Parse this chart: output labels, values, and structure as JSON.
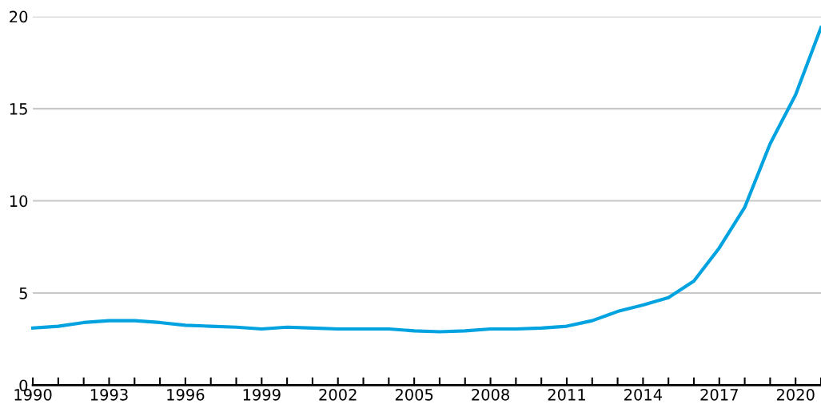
{
  "chart_data": {
    "type": "line",
    "x": [
      1990,
      1991,
      1992,
      1993,
      1994,
      1995,
      1996,
      1997,
      1998,
      1999,
      2000,
      2001,
      2002,
      2003,
      2004,
      2005,
      2006,
      2007,
      2008,
      2009,
      2010,
      2011,
      2012,
      2013,
      2014,
      2015,
      2016,
      2017,
      2018,
      2019,
      2020,
      2021
    ],
    "series": [
      {
        "color": "#00a3e0",
        "values": [
          3.1,
          3.2,
          3.4,
          3.5,
          3.5,
          3.4,
          3.25,
          3.2,
          3.15,
          3.05,
          3.15,
          3.1,
          3.05,
          3.05,
          3.05,
          2.95,
          2.9,
          2.95,
          3.05,
          3.05,
          3.1,
          3.2,
          3.5,
          4.0,
          4.35,
          4.75,
          5.65,
          7.45,
          9.65,
          13.1,
          15.75,
          19.4
        ]
      }
    ],
    "xlim": [
      1990,
      2021
    ],
    "xticks": [
      1990,
      {
        "value": 1991,
        "label": null
      },
      {
        "value": 1992,
        "label": null
      },
      1993,
      {
        "value": 1994,
        "label": null
      },
      {
        "value": 1995,
        "label": null
      },
      1996,
      {
        "value": 1997,
        "label": null
      },
      {
        "value": 1998,
        "label": null
      },
      1999,
      {
        "value": 2000,
        "label": null
      },
      {
        "value": 2001,
        "label": null
      },
      2002,
      {
        "value": 2003,
        "label": null
      },
      {
        "value": 2004,
        "label": null
      },
      2005,
      {
        "value": 2006,
        "label": null
      },
      {
        "value": 2007,
        "label": null
      },
      2008,
      {
        "value": 2009,
        "label": null
      },
      {
        "value": 2010,
        "label": null
      },
      2011,
      {
        "value": 2012,
        "label": null
      },
      {
        "value": 2013,
        "label": null
      },
      2014,
      {
        "value": 2015,
        "label": null
      },
      {
        "value": 2016,
        "label": null
      },
      2017,
      {
        "value": 2018,
        "label": null
      },
      {
        "value": 2019,
        "label": null
      },
      2020,
      {
        "value": 2021,
        "label": null
      }
    ],
    "ylim": [
      0,
      20
    ],
    "yticks": [
      0,
      5,
      10,
      15,
      20
    ],
    "grid": "y",
    "legend": false,
    "marker": "none",
    "line_style": "solid"
  }
}
